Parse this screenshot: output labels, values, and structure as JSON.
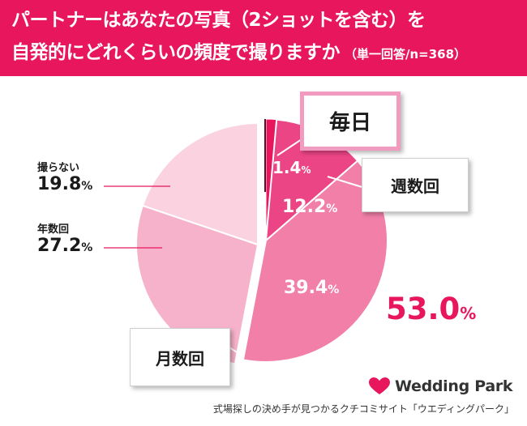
{
  "header": {
    "title_line1": "パートナーはあなたの写真（2ショットを含む）を",
    "title_line2": "自発的にどれくらいの頻度で撮りますか",
    "subtitle": "（単一回答/n=368）"
  },
  "chart_data": {
    "type": "pie",
    "title": "パートナーはあなたの写真（2ショットを含む）を自発的にどれくらいの頻度で撮りますか",
    "subtitle": "（単一回答/n=368）",
    "unit": "%",
    "slices": [
      {
        "label": "毎日",
        "value": 1.4,
        "value_text": "1.4",
        "color": "#e8175d"
      },
      {
        "label": "週数回",
        "value": 12.2,
        "value_text": "12.2",
        "color": "#ec4585"
      },
      {
        "label": "月数回",
        "value": 39.4,
        "value_text": "39.4",
        "color": "#f17fa8"
      },
      {
        "label": "年数回",
        "value": 27.2,
        "value_text": "27.2",
        "color": "#f7b2cb"
      },
      {
        "label": "撮らない",
        "value": 19.8,
        "value_text": "19.8",
        "color": "#fad2e0"
      }
    ],
    "group_total": {
      "value": 53.0,
      "value_text": "53.0",
      "members": [
        "毎日",
        "週数回",
        "月数回"
      ]
    },
    "colors": {
      "accent": "#e8175d",
      "callout_border": "#f19bc0"
    }
  },
  "brand": {
    "logo_text": "Wedding Park",
    "logo_icon": "heart-icon",
    "heart_color": "#e8175d"
  },
  "footer": {
    "caption": "式場探しの決め手が見つかるクチコミサイト「ウエディングパーク」"
  }
}
